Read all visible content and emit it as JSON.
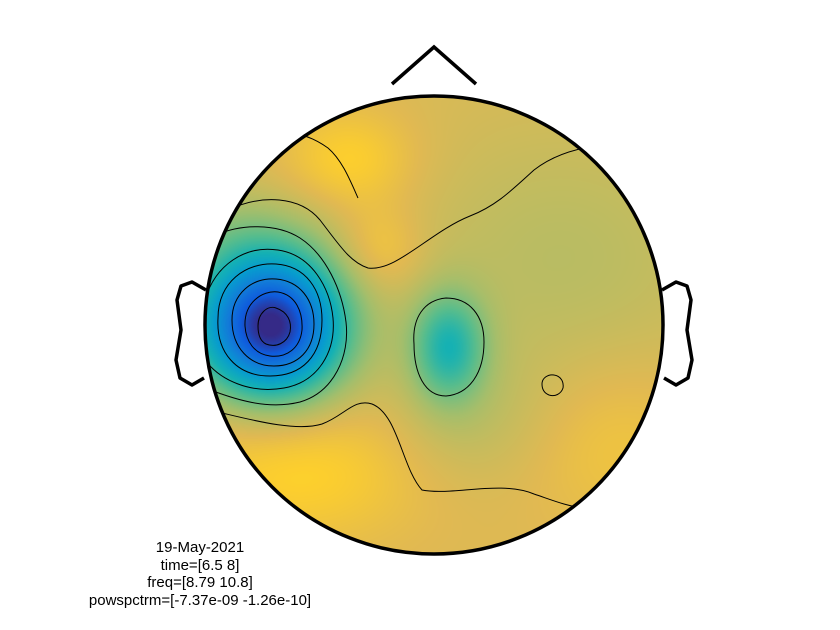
{
  "chart_data": {
    "type": "heatmap",
    "plot_kind": "topoplot",
    "colormap": "parula",
    "color_range": [
      -7.37e-09,
      -1.26e-10
    ],
    "colorbar": false,
    "grid": false,
    "contour_lines": true,
    "features": [
      {
        "name": "left-temporal-minimum",
        "relative_level": 0.0
      },
      {
        "name": "central-green-patch",
        "relative_level": 0.55
      },
      {
        "name": "background",
        "relative_level": 0.85
      }
    ],
    "annotations": {
      "date": "19-May-2021",
      "time": "time=[6.5 8]",
      "freq": "freq=[8.79 10.8]",
      "powspctrm": "powspctrm=[-7.37e-09 -1.26e-10]"
    }
  }
}
